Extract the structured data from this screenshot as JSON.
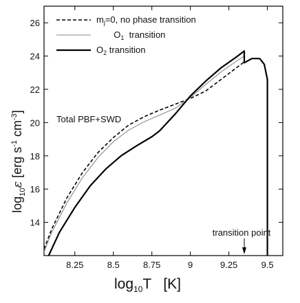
{
  "chart_data": {
    "type": "line",
    "title": "",
    "xlabel": {
      "main": "log",
      "sub": "10",
      "rest": "T   [K]"
    },
    "ylabel": {
      "pre": "log",
      "sub": "10",
      "eps": "ε",
      "bracket_open": " [erg s",
      "exp1": "-1",
      "mid": " cm",
      "exp2": "-3",
      "bracket_close": "]"
    },
    "xlim": [
      8.05,
      9.6
    ],
    "ylim": [
      12.0,
      27.0
    ],
    "xticks": [
      8.25,
      8.5,
      8.75,
      9,
      9.25,
      9.5
    ],
    "xtick_labels": [
      "8.25",
      "8.5",
      "8.75",
      "9",
      "9.25",
      "9.5"
    ],
    "yticks": [
      14,
      16,
      18,
      20,
      22,
      24,
      26
    ],
    "ytick_labels": [
      "14",
      "16",
      "18",
      "20",
      "22",
      "24",
      "26"
    ],
    "grid": false,
    "legend_position": "top-left",
    "series": [
      {
        "name": "mj=0, no phase transition",
        "legend": {
          "pre": "m",
          "sub": "j",
          "post": "=0, no phase transition"
        },
        "style": "dashed",
        "color": "#000000",
        "x": [
          8.05,
          8.1,
          8.2,
          8.3,
          8.4,
          8.5,
          8.6,
          8.7,
          8.8,
          8.9,
          9.0,
          9.1,
          9.2,
          9.3,
          9.35
        ],
        "y": [
          12.4,
          13.6,
          15.5,
          17.0,
          18.2,
          19.1,
          19.85,
          20.35,
          20.75,
          21.1,
          21.45,
          21.9,
          22.6,
          23.3,
          23.65
        ]
      },
      {
        "name": "O1 transition",
        "legend": {
          "pre": "O",
          "sub": "1",
          "post": "  transition"
        },
        "style": "thin",
        "color": "#888888",
        "x": [
          8.05,
          8.1,
          8.2,
          8.3,
          8.4,
          8.5,
          8.6,
          8.7,
          8.8,
          8.9,
          9.0,
          9.1,
          9.2,
          9.3,
          9.35
        ],
        "y": [
          12.2,
          13.4,
          15.2,
          16.7,
          17.9,
          18.85,
          19.55,
          20.05,
          20.45,
          20.85,
          21.5,
          22.3,
          23.05,
          23.7,
          24.0
        ]
      },
      {
        "name": "O2 transition",
        "legend": {
          "pre": "O",
          "sub": "2",
          "post": " transition"
        },
        "style": "thick",
        "color": "#000000",
        "x": [
          8.08,
          8.15,
          8.25,
          8.35,
          8.45,
          8.55,
          8.65,
          8.75,
          8.8,
          8.9,
          9.0,
          9.1,
          9.2,
          9.3,
          9.35,
          9.35,
          9.4,
          9.45,
          9.48,
          9.5,
          9.5
        ],
        "y": [
          12.0,
          13.4,
          14.9,
          16.2,
          17.2,
          18.0,
          18.6,
          19.15,
          19.5,
          20.5,
          21.6,
          22.5,
          23.3,
          23.95,
          24.3,
          23.6,
          23.85,
          23.85,
          23.5,
          22.6,
          12.0
        ]
      }
    ],
    "annotations": {
      "total_label": "Total PBF+SWD",
      "transition_point": {
        "text": "transition point",
        "x": 9.35
      }
    }
  }
}
